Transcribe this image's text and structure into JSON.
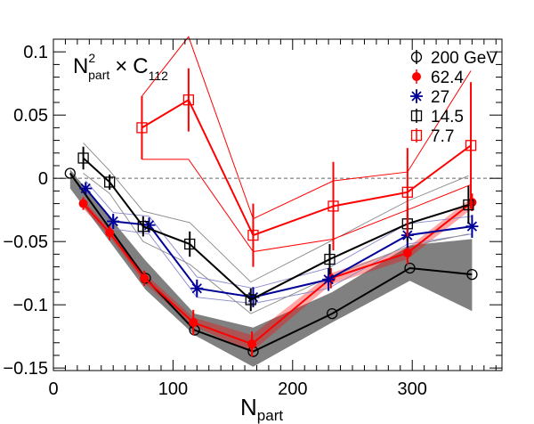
{
  "chart_data": {
    "type": "line",
    "title": "",
    "label_main": "N",
    "label_sup": "2",
    "label_sub": "part",
    "label_times": "×",
    "label_c": "C",
    "label_c_sub": "112",
    "xlabel": "N",
    "xlabel_sub": "part",
    "ylabel": "",
    "xlim": [
      0,
      375
    ],
    "ylim": [
      -0.152,
      0.11
    ],
    "x_ticks": [
      {
        "value": 0,
        "label": "0"
      },
      {
        "value": 100,
        "label": "100"
      },
      {
        "value": 200,
        "label": "200"
      },
      {
        "value": 300,
        "label": "300"
      }
    ],
    "y_ticks": [
      {
        "value": 0.1,
        "label": "0.1"
      },
      {
        "value": 0.05,
        "label": "0.05"
      },
      {
        "value": 0,
        "label": "0"
      },
      {
        "value": -0.05,
        "label": "−0.05"
      },
      {
        "value": -0.1,
        "label": "−0.1"
      },
      {
        "value": -0.15,
        "label": "−0.15"
      }
    ],
    "zero_line": true,
    "legend_position": "top-right",
    "series": [
      {
        "name": "200 GeV",
        "color": "#000000",
        "marker": "open-circle",
        "x": [
          14,
          77,
          118,
          167,
          233,
          298,
          350
        ],
        "y": [
          0.004,
          -0.079,
          -0.12,
          -0.137,
          -0.107,
          -0.071,
          -0.076
        ],
        "err": [
          0,
          0,
          0,
          0,
          0,
          0,
          0
        ],
        "band": {
          "color": "#808080",
          "lo": [
            -0.008,
            -0.088,
            -0.124,
            -0.149,
            -0.114,
            -0.081,
            -0.105
          ],
          "hi": [
            0.007,
            -0.065,
            -0.107,
            -0.118,
            -0.09,
            -0.053,
            -0.048
          ]
        }
      },
      {
        "name": "62.4",
        "color": "#ff0000",
        "marker": "filled-circle",
        "x": [
          25,
          47,
          76,
          117,
          166,
          232,
          296,
          350
        ],
        "y": [
          -0.02,
          -0.043,
          -0.079,
          -0.114,
          -0.131,
          -0.079,
          -0.059,
          -0.019
        ],
        "err": [
          0.005,
          0.006,
          0.006,
          0.01,
          0.01,
          0.008,
          0.009,
          0.007
        ],
        "band": {
          "color": "#ff0000",
          "lo": [
            -0.024,
            -0.046,
            -0.083,
            -0.117,
            -0.137,
            -0.084,
            -0.064,
            -0.024
          ],
          "hi": [
            -0.017,
            -0.04,
            -0.075,
            -0.11,
            -0.124,
            -0.075,
            -0.055,
            -0.015
          ]
        }
      },
      {
        "name": "27",
        "color": "#000099",
        "marker": "star",
        "x": [
          27,
          50,
          80,
          120,
          167,
          230,
          296,
          350
        ],
        "y": [
          -0.008,
          -0.034,
          -0.037,
          -0.087,
          -0.094,
          -0.08,
          -0.045,
          -0.038
        ],
        "err": [
          0.005,
          0.006,
          0.006,
          0.007,
          0.008,
          0.009,
          0.01,
          0.009
        ],
        "sys_hi": [
          -0.002,
          -0.027,
          -0.03,
          -0.078,
          -0.087,
          -0.071,
          -0.036,
          -0.03
        ],
        "sys_lo": [
          -0.014,
          -0.04,
          -0.044,
          -0.094,
          -0.099,
          -0.087,
          -0.052,
          -0.044
        ]
      },
      {
        "name": "14.5",
        "color": "#000000",
        "marker": "open-square",
        "x": [
          25,
          47,
          75,
          114,
          165,
          231,
          296,
          347
        ],
        "y": [
          0.016,
          -0.003,
          -0.038,
          -0.052,
          -0.096,
          -0.064,
          -0.036,
          -0.021
        ],
        "err": [
          0.009,
          0.006,
          0.008,
          0.01,
          0.009,
          0.012,
          0.014,
          0.015
        ],
        "sys_hi": [
          0.028,
          0.006,
          -0.026,
          -0.035,
          -0.082,
          -0.05,
          -0.018,
          0.002
        ],
        "sys_lo": [
          0.004,
          -0.012,
          -0.05,
          -0.068,
          -0.107,
          -0.078,
          -0.054,
          -0.044
        ]
      },
      {
        "name": "7.7",
        "color": "#ff0000",
        "marker": "open-square",
        "x": [
          74,
          113,
          167,
          234,
          296,
          349
        ],
        "y": [
          0.04,
          0.062,
          -0.045,
          -0.022,
          -0.011,
          0.026
        ],
        "err": [
          0.025,
          0.025,
          0.025,
          0.035,
          0.035,
          0.05
        ],
        "sys_hi": [
          0.065,
          0.112,
          -0.032,
          -0.002,
          0.005,
          0.085
        ],
        "sys_lo": [
          0.015,
          0.015,
          -0.058,
          -0.048,
          -0.025,
          -0.005
        ]
      }
    ]
  }
}
